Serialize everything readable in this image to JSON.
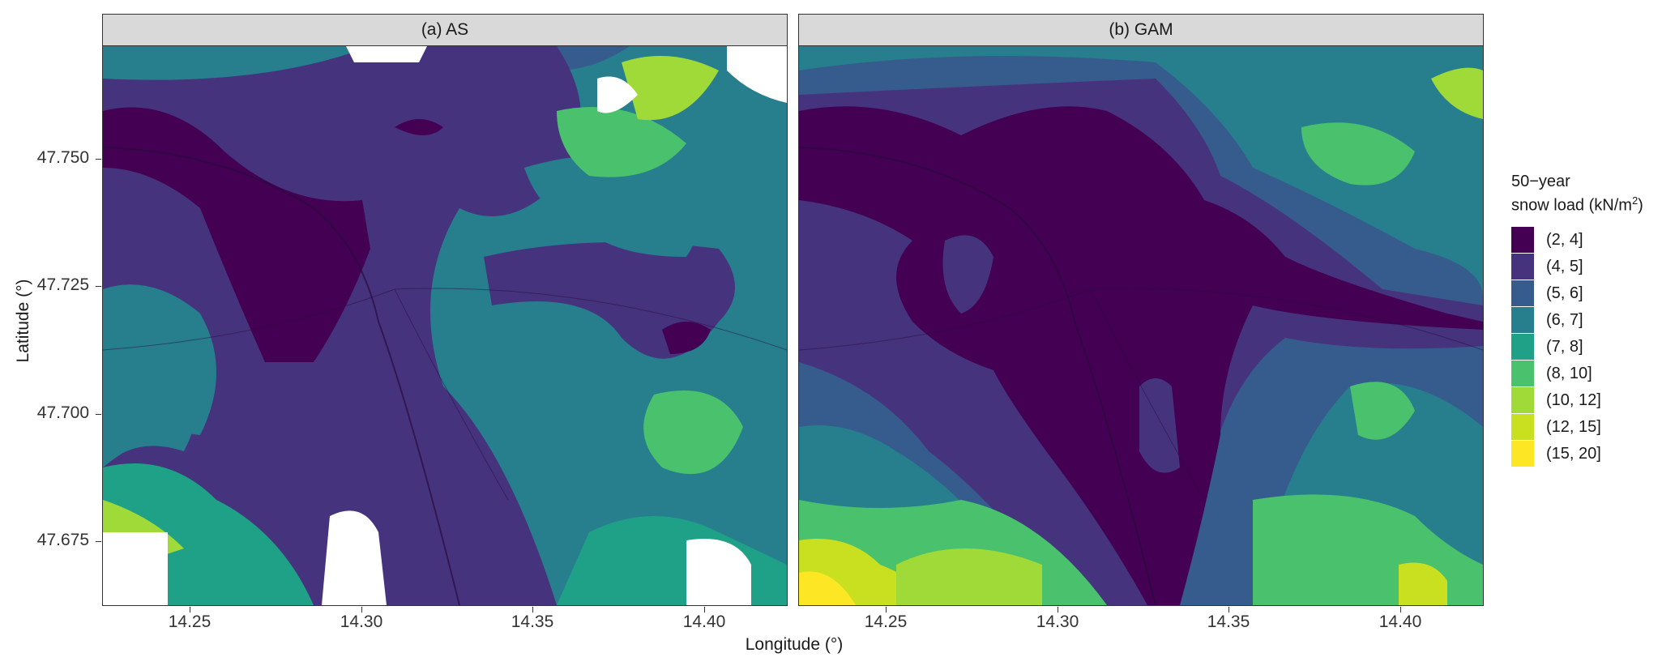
{
  "axes": {
    "y_title": "Latitude (°)",
    "x_title": "Longitude (°)",
    "y_ticks": [
      "47.750",
      "47.725",
      "47.700",
      "47.675"
    ],
    "x_ticks": [
      "14.25",
      "14.30",
      "14.35",
      "14.40"
    ]
  },
  "panels": [
    {
      "label": "(a) AS"
    },
    {
      "label": "(b) GAM"
    }
  ],
  "legend": {
    "title_line1": "50−year",
    "title_line2": "snow load (kN/m",
    "title_sup": "2",
    "title_end": ")",
    "items": [
      {
        "label": "(2, 4]",
        "color": "#440154"
      },
      {
        "label": "(4, 5]",
        "color": "#46337e"
      },
      {
        "label": "(5, 6]",
        "color": "#365c8d"
      },
      {
        "label": "(6, 7]",
        "color": "#277f8e"
      },
      {
        "label": "(7, 8]",
        "color": "#1fa187"
      },
      {
        "label": "(8, 10]",
        "color": "#4ac16d"
      },
      {
        "label": "(10, 12]",
        "color": "#a0da39"
      },
      {
        "label": "(12, 15]",
        "color": "#c8e020"
      },
      {
        "label": "(15, 20]",
        "color": "#fde725"
      }
    ]
  },
  "chart_data": {
    "type": "heatmap",
    "title": "",
    "xlabel": "Longitude (°)",
    "ylabel": "Latitude (°)",
    "xlim": [
      14.228,
      14.428
    ],
    "ylim": [
      47.662,
      47.772
    ],
    "x_ticks": [
      14.25,
      14.3,
      14.35,
      14.4
    ],
    "y_ticks": [
      47.675,
      47.7,
      47.725,
      47.75
    ],
    "facets": [
      "(a) AS",
      "(b) GAM"
    ],
    "legend_placement": "right",
    "color_bins": [
      "(2, 4]",
      "(4, 5]",
      "(5, 6]",
      "(6, 7]",
      "(7, 8]",
      "(8, 10]",
      "(10, 12]",
      "(12, 15]",
      "(15, 20]"
    ]
  }
}
